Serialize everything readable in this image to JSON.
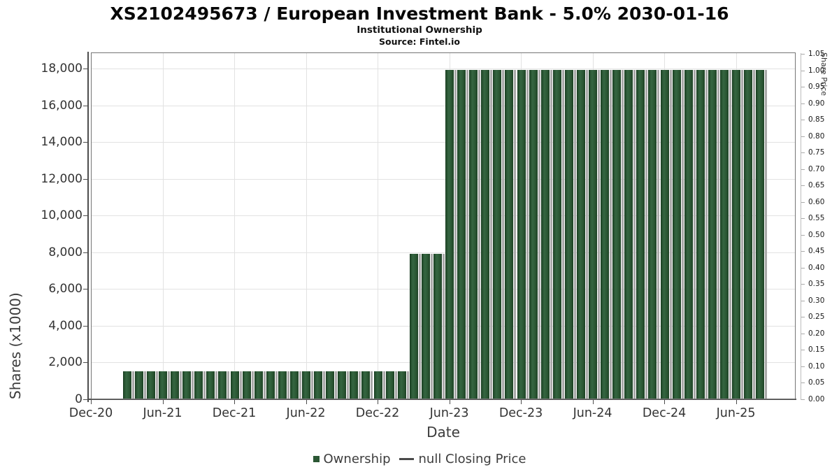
{
  "header": {
    "title": "XS2102495673 / European Investment Bank - 5.0% 2030-01-16",
    "subtitle": "Institutional Ownership",
    "source": "Source: Fintel.io"
  },
  "legend": {
    "ownership_label": "Ownership",
    "price_label": "null Closing Price",
    "ownership_swatch": "dark-green-square",
    "price_swatch": "gray-dash-line"
  },
  "colors": {
    "bar_green": "#2b5734",
    "bar_shadow": "#a9a9a9",
    "grid": "#e2e2e2",
    "axis_dark": "#4d4d4d",
    "axis_light": "#bdbdbd",
    "text": "#333333"
  },
  "chart_data": {
    "type": "bar",
    "title": "XS2102495673 / European Investment Bank - 5.0% 2030-01-16",
    "subtitle": "Institutional Ownership",
    "xlabel": "Date",
    "ylabel": "Shares (x1000)",
    "y2label": "Share Price",
    "ylim": [
      0,
      18890
    ],
    "y2lim": [
      0,
      1.05
    ],
    "grid": true,
    "legend_position": "bottom-center",
    "x_axis_start": "Dec-20",
    "months_total": 59,
    "start_month_index": 3,
    "left_ticks": [
      {
        "v": 0,
        "label": "0"
      },
      {
        "v": 2000,
        "label": "2,000"
      },
      {
        "v": 4000,
        "label": "4,000"
      },
      {
        "v": 6000,
        "label": "6,000"
      },
      {
        "v": 8000,
        "label": "8,000"
      },
      {
        "v": 10000,
        "label": "10,000"
      },
      {
        "v": 12000,
        "label": "12,000"
      },
      {
        "v": 14000,
        "label": "14,000"
      },
      {
        "v": 16000,
        "label": "16,000"
      },
      {
        "v": 18000,
        "label": "18,000"
      }
    ],
    "right_ticks": [
      "0.00",
      "0.05",
      "0.10",
      "0.15",
      "0.20",
      "0.25",
      "0.30",
      "0.35",
      "0.40",
      "0.45",
      "0.50",
      "0.55",
      "0.60",
      "0.65",
      "0.70",
      "0.75",
      "0.80",
      "0.85",
      "0.90",
      "0.95",
      "1.00",
      "1.05"
    ],
    "x_ticks": [
      {
        "m": 0,
        "label": "Dec-20"
      },
      {
        "m": 6,
        "label": "Jun-21"
      },
      {
        "m": 12,
        "label": "Dec-21"
      },
      {
        "m": 18,
        "label": "Jun-22"
      },
      {
        "m": 24,
        "label": "Dec-22"
      },
      {
        "m": 30,
        "label": "Jun-23"
      },
      {
        "m": 36,
        "label": "Dec-23"
      },
      {
        "m": 42,
        "label": "Jun-24"
      },
      {
        "m": 48,
        "label": "Dec-24"
      },
      {
        "m": 54,
        "label": "Jun-25"
      }
    ],
    "categories": [
      "Mar-21",
      "Apr-21",
      "May-21",
      "Jun-21",
      "Jul-21",
      "Aug-21",
      "Sep-21",
      "Oct-21",
      "Nov-21",
      "Dec-21",
      "Jan-22",
      "Feb-22",
      "Mar-22",
      "Apr-22",
      "May-22",
      "Jun-22",
      "Jul-22",
      "Aug-22",
      "Sep-22",
      "Oct-22",
      "Nov-22",
      "Dec-22",
      "Jan-23",
      "Feb-23",
      "Mar-23",
      "Apr-23",
      "May-23",
      "Jun-23",
      "Jul-23",
      "Aug-23",
      "Sep-23",
      "Oct-23",
      "Nov-23",
      "Dec-23",
      "Jan-24",
      "Feb-24",
      "Mar-24",
      "Apr-24",
      "May-24",
      "Jun-24",
      "Jul-24",
      "Aug-24",
      "Sep-24",
      "Oct-24",
      "Nov-24",
      "Dec-24",
      "Jan-25",
      "Feb-25",
      "Mar-25",
      "Apr-25",
      "May-25",
      "Jun-25",
      "Jul-25",
      "Aug-25"
    ],
    "series": [
      {
        "name": "Ownership",
        "values": [
          1500,
          1500,
          1500,
          1500,
          1500,
          1500,
          1500,
          1500,
          1500,
          1500,
          1500,
          1500,
          1500,
          1500,
          1500,
          1500,
          1500,
          1500,
          1500,
          1500,
          1500,
          1500,
          1500,
          1500,
          7870,
          7870,
          7870,
          17900,
          17900,
          17900,
          17900,
          17900,
          17900,
          17900,
          17900,
          17900,
          17900,
          17900,
          17900,
          17900,
          17900,
          17900,
          17900,
          17900,
          17900,
          17900,
          17900,
          17900,
          17900,
          17900,
          17900,
          17900,
          17900,
          17900
        ]
      },
      {
        "name": "null Closing Price",
        "values": null
      }
    ]
  }
}
